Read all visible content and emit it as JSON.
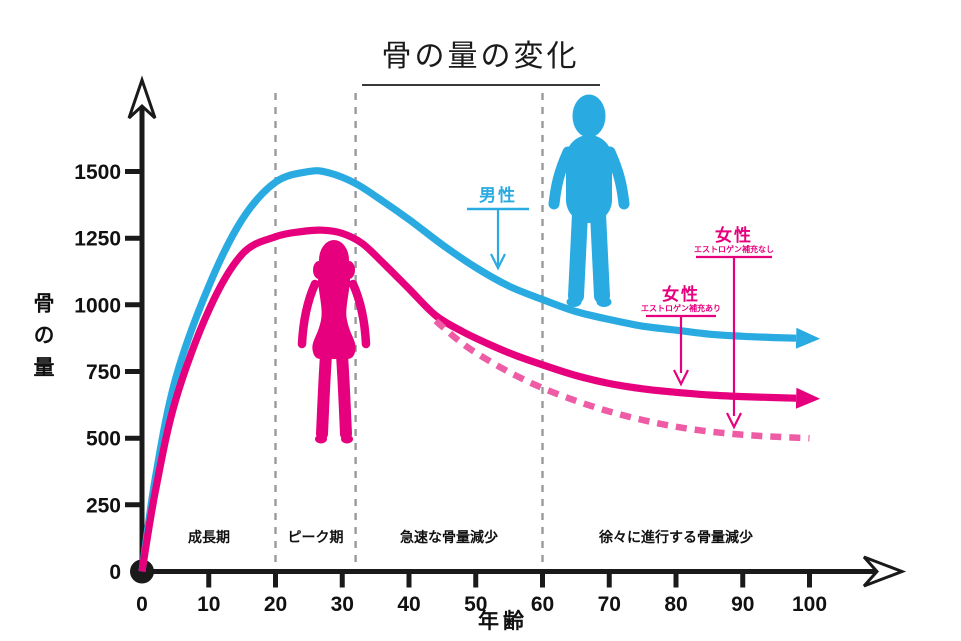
{
  "title": "骨の量の変化",
  "chart_data": {
    "type": "line",
    "title": "骨の量の変化",
    "xlabel": "年齢",
    "ylabel": "骨の量",
    "xlim": [
      0,
      105
    ],
    "ylim": [
      0,
      1600
    ],
    "grid": false,
    "legend_position": "inline-annotations",
    "x_ticks": [
      0,
      10,
      20,
      30,
      40,
      50,
      60,
      70,
      80,
      90,
      100
    ],
    "y_ticks": [
      0,
      250,
      500,
      750,
      1000,
      1250,
      1500
    ],
    "phase_divider_ages": [
      20,
      32,
      60
    ],
    "phases": [
      {
        "label": "成長期",
        "from_age": 0,
        "to_age": 20
      },
      {
        "label": "ピーク期",
        "from_age": 20,
        "to_age": 32
      },
      {
        "label": "急速な骨量減少",
        "from_age": 32,
        "to_age": 60
      },
      {
        "label": "徐々に進行する骨量減少",
        "from_age": 60,
        "to_age": 100
      }
    ],
    "series": [
      {
        "id": "male",
        "name": "男性",
        "color": "#29abe2",
        "style": "solid",
        "arrow_end": true,
        "x": [
          0,
          2,
          5,
          10,
          15,
          20,
          25,
          28,
          32,
          36,
          40,
          45,
          50,
          55,
          60,
          65,
          70,
          75,
          80,
          85,
          90,
          95,
          98
        ],
        "y": [
          0,
          350,
          720,
          1070,
          1320,
          1460,
          1500,
          1495,
          1455,
          1390,
          1320,
          1225,
          1140,
          1070,
          1020,
          975,
          945,
          920,
          905,
          890,
          882,
          877,
          875
        ]
      },
      {
        "id": "female-estrogen",
        "name": "女性（エストロゲン補充あり）",
        "color": "#e6007e",
        "style": "solid",
        "arrow_end": true,
        "x": [
          0,
          2,
          5,
          10,
          15,
          20,
          24,
          27,
          30,
          33,
          36,
          40,
          44,
          48,
          52,
          56,
          60,
          65,
          70,
          75,
          80,
          85,
          90,
          95,
          98
        ],
        "y": [
          0,
          300,
          640,
          980,
          1190,
          1255,
          1275,
          1280,
          1268,
          1230,
          1160,
          1060,
          960,
          900,
          852,
          810,
          775,
          735,
          705,
          685,
          672,
          662,
          656,
          652,
          650
        ]
      },
      {
        "id": "female-no-estrogen",
        "name": "女性（エストロゲン補充なし）",
        "color": "#ee5ca6",
        "style": "dashed",
        "arrow_end": false,
        "x": [
          44,
          48,
          52,
          56,
          60,
          65,
          70,
          75,
          80,
          85,
          90,
          95,
          100
        ],
        "y": [
          940,
          855,
          790,
          735,
          688,
          640,
          600,
          568,
          543,
          525,
          513,
          505,
          500
        ]
      }
    ]
  },
  "annotations": {
    "male": {
      "label": "男性",
      "color": "#29abe2"
    },
    "female_with_estrogen": {
      "label": "女性",
      "sublabel": "エストロゲン補充あり",
      "color": "#e6007e"
    },
    "female_without_estrogen": {
      "label": "女性",
      "sublabel": "エストロゲン補充なし",
      "color": "#e6007e"
    }
  },
  "icons": {
    "male_figure": "male-silhouette-icon",
    "female_figure": "female-silhouette-icon"
  },
  "colors": {
    "male": "#29abe2",
    "female": "#e6007e",
    "female_dashed": "#ee5ca6",
    "axis": "#1a1a1a",
    "phase_divider": "#999999"
  }
}
